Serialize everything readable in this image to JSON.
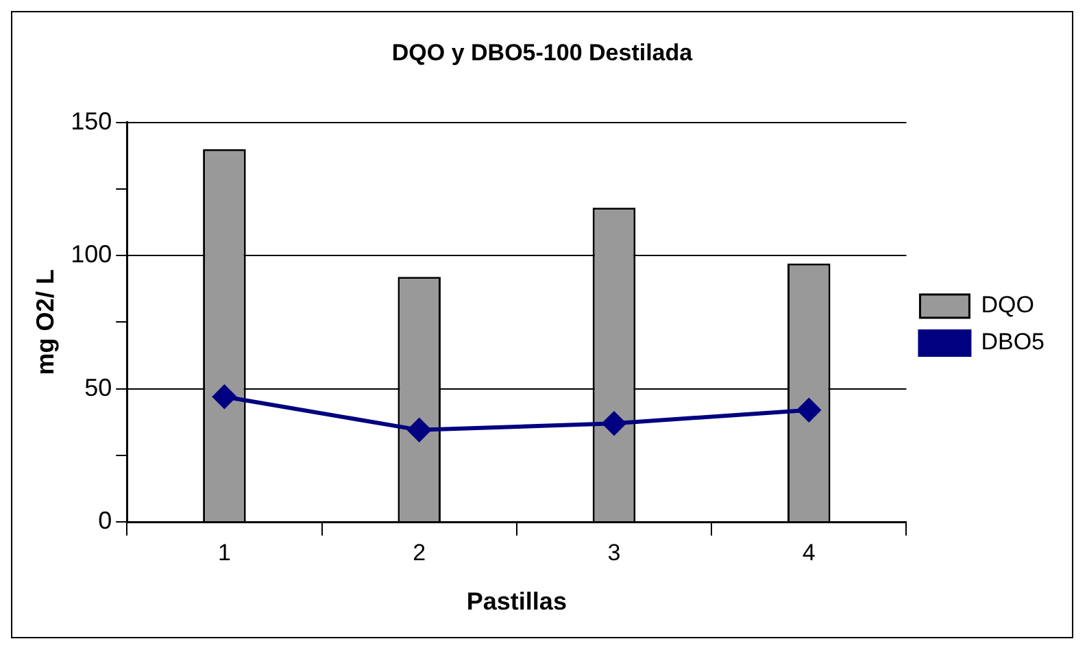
{
  "chart_data": {
    "type": "bar",
    "title": "DQO y DBO5-100 Destilada",
    "xlabel": "Pastillas",
    "ylabel": "mg O2/ L",
    "categories": [
      "1",
      "2",
      "3",
      "4"
    ],
    "series": [
      {
        "name": "DQO",
        "color": "#999999",
        "values": [
          140,
          92,
          118,
          97
        ]
      },
      {
        "name": "DBO5",
        "type": "line",
        "color": "#000080",
        "values": [
          47,
          34.5,
          37,
          42
        ],
        "marker": "diamond"
      }
    ],
    "ylim": [
      0,
      150
    ],
    "yticks": [
      0,
      {
        "value": 25,
        "label": null
      },
      50,
      {
        "value": 75,
        "label": null
      },
      100,
      {
        "value": 125,
        "label": null
      },
      150
    ],
    "grid": "y",
    "legend": "right"
  }
}
